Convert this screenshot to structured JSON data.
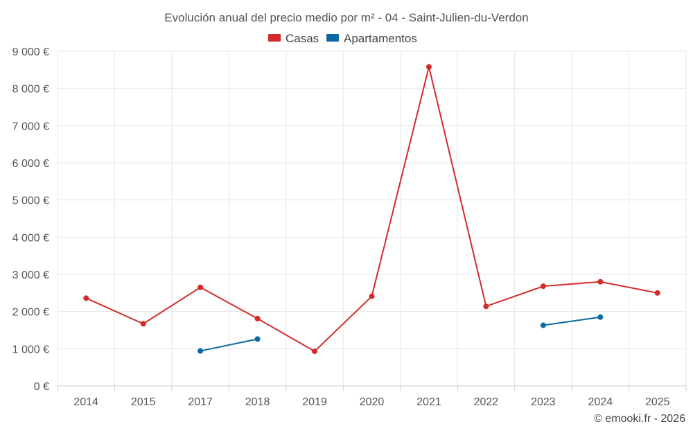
{
  "chart_data": {
    "type": "line",
    "title": "Evolución anual del precio medio por m² - 04 - Saint-Julien-du-Verdon",
    "categories": [
      "2014",
      "2015",
      "2017",
      "2018",
      "2019",
      "2020",
      "2021",
      "2022",
      "2023",
      "2024",
      "2025"
    ],
    "series": [
      {
        "name": "Casas",
        "color": "#d42a2a",
        "values": [
          2360,
          1670,
          2650,
          1810,
          930,
          2410,
          8580,
          2140,
          2680,
          2800,
          2500
        ]
      },
      {
        "name": "Apartamentos",
        "color": "#0b68a0",
        "values": [
          null,
          null,
          940,
          1260,
          null,
          null,
          null,
          null,
          1630,
          1850,
          null
        ]
      }
    ],
    "ylim": [
      0,
      9000
    ],
    "yticks": [
      0,
      1000,
      2000,
      3000,
      4000,
      5000,
      6000,
      7000,
      8000,
      9000
    ],
    "ytick_labels": [
      "0 €",
      "1 000 €",
      "2 000 €",
      "3 000 €",
      "4 000 €",
      "5 000 €",
      "6 000 €",
      "7 000 €",
      "8 000 €",
      "9 000 €"
    ],
    "legend_position": "top-center",
    "grid": true
  },
  "credit": "© emooki.fr - 2026"
}
